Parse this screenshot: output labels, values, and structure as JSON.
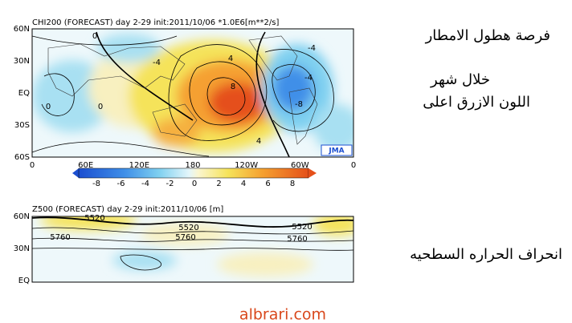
{
  "panels": [
    {
      "title": "CHI200 (FORECAST) day 2-29 init:2011/10/06  *1.0E6[m**2/s]",
      "lat_labels": [
        "60N",
        "30N",
        "EQ",
        "30S",
        "60S"
      ],
      "lon_labels": [
        "0",
        "60E",
        "120E",
        "180",
        "120W",
        "60W",
        "0"
      ],
      "colorbar_labels": [
        "-8",
        "-6",
        "-4",
        "-2",
        "0",
        "2",
        "4",
        "6",
        "8"
      ],
      "contour_labels": [
        "0",
        "-4",
        "4",
        "-4",
        "0",
        "0",
        "8",
        "-8",
        "4",
        "-4"
      ],
      "logo": "JMA"
    },
    {
      "title": "Z500 (FORECAST) day 2-29 init:2011/10/06   [m]",
      "lat_labels": [
        "60N",
        "30N",
        "EQ"
      ],
      "contour_labels": [
        "5520",
        "5520",
        "5760",
        "5760",
        "5520",
        "5760"
      ]
    }
  ],
  "notes": [
    "فرصة هطول الامطار",
    "خلال شهر",
    "اللون الازرق اعلى",
    "انحراف الحراره السطحيه"
  ],
  "footer": "albrari.com"
}
